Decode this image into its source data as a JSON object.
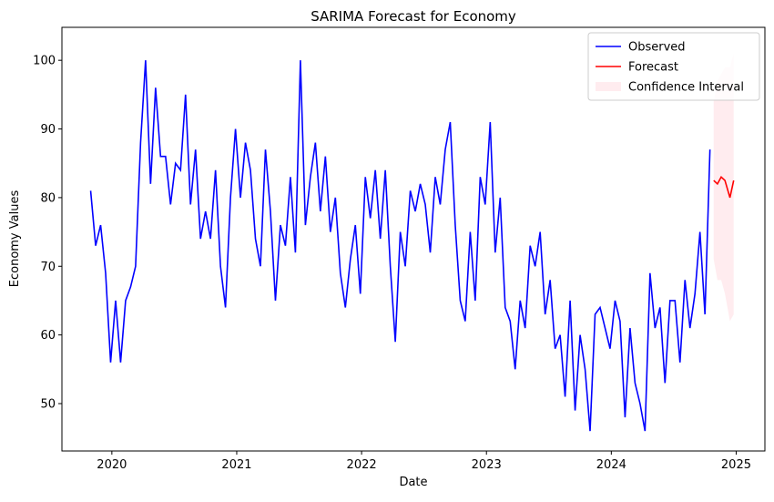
{
  "chart_data": {
    "type": "line",
    "title": "SARIMA Forecast for Economy",
    "x_label": "Date",
    "y_label": "Economy Values",
    "xlim": [
      2019.6,
      2025.23
    ],
    "xticks": [
      2020,
      2021,
      2022,
      2023,
      2024,
      2025
    ],
    "ylim": [
      43.1,
      104.8
    ],
    "yticks": [
      50,
      60,
      70,
      80,
      90,
      100
    ],
    "grid": false,
    "legend": "upper right",
    "series": [
      {
        "name": "Observed",
        "color": "#0000ff",
        "x": [
          2019.83,
          2019.87,
          2019.91,
          2019.95,
          2019.99,
          2020.03,
          2020.07,
          2020.11,
          2020.15,
          2020.19,
          2020.23,
          2020.27,
          2020.31,
          2020.35,
          2020.39,
          2020.43,
          2020.47,
          2020.51,
          2020.55,
          2020.59,
          2020.63,
          2020.67,
          2020.71,
          2020.75,
          2020.79,
          2020.83,
          2020.87,
          2020.91,
          2020.95,
          2020.99,
          2021.03,
          2021.07,
          2021.11,
          2021.15,
          2021.19,
          2021.23,
          2021.27,
          2021.31,
          2021.35,
          2021.39,
          2021.43,
          2021.47,
          2021.51,
          2021.55,
          2021.59,
          2021.63,
          2021.67,
          2021.71,
          2021.75,
          2021.79,
          2021.83,
          2021.87,
          2021.91,
          2021.95,
          2021.99,
          2022.03,
          2022.07,
          2022.11,
          2022.15,
          2022.19,
          2022.23,
          2022.27,
          2022.31,
          2022.35,
          2022.39,
          2022.43,
          2022.47,
          2022.51,
          2022.55,
          2022.59,
          2022.63,
          2022.67,
          2022.71,
          2022.75,
          2022.79,
          2022.83,
          2022.87,
          2022.91,
          2022.95,
          2022.99,
          2023.03,
          2023.07,
          2023.11,
          2023.15,
          2023.19,
          2023.23,
          2023.27,
          2023.31,
          2023.35,
          2023.39,
          2023.43,
          2023.47,
          2023.51,
          2023.55,
          2023.59,
          2023.63,
          2023.67,
          2023.71,
          2023.75,
          2023.79,
          2023.83,
          2023.87,
          2023.91,
          2023.95,
          2023.99,
          2024.03,
          2024.07,
          2024.11,
          2024.15,
          2024.19,
          2024.23,
          2024.27,
          2024.31,
          2024.35,
          2024.39,
          2024.43,
          2024.47,
          2024.51,
          2024.55,
          2024.59,
          2024.63,
          2024.67,
          2024.71,
          2024.75,
          2024.79
        ],
        "values": [
          81,
          73,
          76,
          69,
          56,
          65,
          56,
          65,
          67,
          70,
          88,
          100,
          82,
          96,
          86,
          86,
          79,
          85,
          84,
          95,
          79,
          87,
          74,
          78,
          74,
          84,
          70,
          64,
          80,
          90,
          80,
          88,
          84,
          74,
          70,
          87,
          78,
          65,
          76,
          73,
          83,
          72,
          100,
          76,
          83,
          88,
          78,
          86,
          75,
          80,
          69,
          64,
          71,
          76,
          66,
          83,
          77,
          84,
          74,
          84,
          70,
          59,
          75,
          70,
          81,
          78,
          82,
          79,
          72,
          83,
          79,
          87,
          91,
          76,
          65,
          62,
          75,
          65,
          83,
          79,
          91,
          72,
          80,
          64,
          62,
          55,
          65,
          61,
          73,
          70,
          75,
          63,
          68,
          58,
          60,
          51,
          65,
          49,
          60,
          55,
          46,
          63,
          64,
          61,
          58,
          65,
          62,
          48,
          61,
          53,
          50,
          46,
          69,
          61,
          64,
          53,
          65,
          65,
          56,
          68,
          61,
          66,
          75,
          63,
          87
        ]
      },
      {
        "name": "Forecast",
        "color": "#ff0000",
        "x": [
          2024.82,
          2024.85,
          2024.88,
          2024.91,
          2024.95,
          2024.98
        ],
        "values": [
          82.5,
          82,
          83,
          82.5,
          80,
          82.5
        ]
      }
    ],
    "confidence_interval": {
      "name": "Confidence Interval",
      "color": "#ffc0cb",
      "lower": [
        71,
        68,
        68,
        66,
        62,
        63
      ],
      "upper": [
        94,
        97,
        98,
        99,
        99,
        101
      ]
    }
  }
}
